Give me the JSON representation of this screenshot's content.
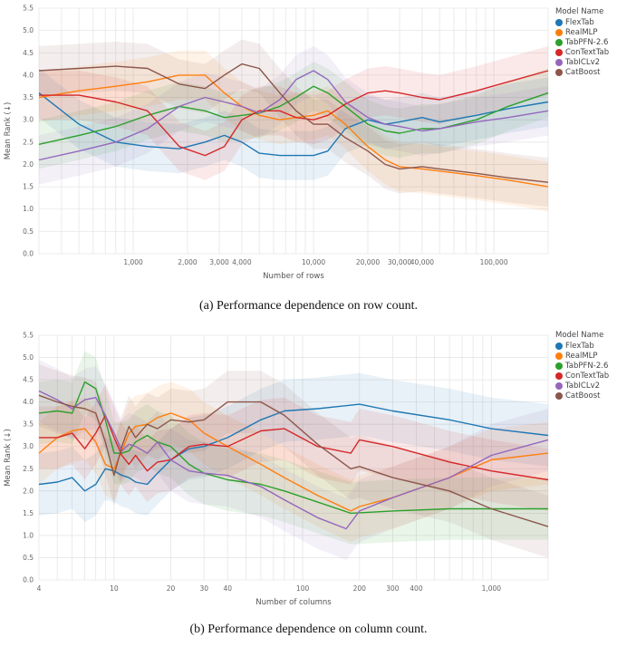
{
  "chart_data": [
    {
      "type": "line",
      "caption": "(a) Performance dependence on row count.",
      "xlabel": "Number of rows",
      "ylabel": "Mean Rank (↓)",
      "xscale": "log",
      "xlim": [
        300,
        200000
      ],
      "ylim": [
        0,
        5.5
      ],
      "yticks": [
        0.0,
        0.5,
        1.0,
        1.5,
        2.0,
        2.5,
        3.0,
        3.5,
        4.0,
        4.5,
        5.0,
        5.5
      ],
      "ytick_labels": [
        "0.0",
        "0.5",
        "1.0",
        "1.5",
        "2.0",
        "2.5",
        "3.0",
        "3.5",
        "4.0",
        "4.5",
        "5.0",
        "5.5"
      ],
      "xticks": [
        1000,
        2000,
        3000,
        4000,
        10000,
        20000,
        30000,
        40000,
        100000
      ],
      "xtick_labels": [
        "1,000",
        "2,000",
        "3,000",
        "4,000",
        "10,000",
        "20,000",
        "30,000",
        "40,000",
        "100,000"
      ],
      "grid": true,
      "legend": {
        "title": "Model Name",
        "placement": "right"
      },
      "series": [
        {
          "name": "FlexTab",
          "color": "#1f77b4",
          "band": 0.55,
          "x": [
            300,
            500,
            800,
            1200,
            1800,
            2500,
            3200,
            4000,
            5000,
            6500,
            8000,
            10000,
            12000,
            15000,
            20000,
            25000,
            30000,
            40000,
            50000,
            80000,
            120000,
            200000
          ],
          "y": [
            3.6,
            2.9,
            2.5,
            2.4,
            2.35,
            2.5,
            2.65,
            2.5,
            2.25,
            2.2,
            2.2,
            2.2,
            2.3,
            2.8,
            3.0,
            2.9,
            2.95,
            3.05,
            2.95,
            3.1,
            3.25,
            3.4
          ]
        },
        {
          "name": "RealMLP",
          "color": "#ff7f0e",
          "band": 0.55,
          "x": [
            300,
            500,
            800,
            1200,
            1800,
            2500,
            3200,
            4000,
            5000,
            6500,
            8000,
            10000,
            12000,
            15000,
            20000,
            25000,
            30000,
            40000,
            50000,
            80000,
            120000,
            200000
          ],
          "y": [
            3.5,
            3.65,
            3.75,
            3.85,
            4.0,
            4.0,
            3.6,
            3.3,
            3.1,
            3.0,
            3.05,
            3.1,
            3.2,
            2.9,
            2.4,
            2.1,
            1.95,
            1.9,
            1.85,
            1.75,
            1.65,
            1.5
          ]
        },
        {
          "name": "TabPFN-2.6",
          "color": "#2ca02c",
          "band": 0.55,
          "x": [
            300,
            500,
            800,
            1200,
            1800,
            2500,
            3200,
            4000,
            5000,
            6500,
            8000,
            10000,
            12000,
            15000,
            20000,
            25000,
            30000,
            40000,
            50000,
            80000,
            120000,
            200000
          ],
          "y": [
            2.45,
            2.65,
            2.85,
            3.1,
            3.3,
            3.2,
            3.05,
            3.1,
            3.15,
            3.3,
            3.5,
            3.75,
            3.6,
            3.3,
            2.9,
            2.75,
            2.7,
            2.8,
            2.8,
            3.0,
            3.3,
            3.6
          ]
        },
        {
          "name": "ConTextTab",
          "color": "#d62728",
          "band": 0.55,
          "x": [
            300,
            500,
            800,
            1200,
            1800,
            2500,
            3200,
            4000,
            5000,
            6500,
            8000,
            10000,
            12000,
            15000,
            20000,
            25000,
            30000,
            40000,
            50000,
            80000,
            120000,
            200000
          ],
          "y": [
            3.55,
            3.55,
            3.4,
            3.2,
            2.4,
            2.2,
            2.4,
            3.0,
            3.2,
            3.2,
            3.05,
            3.0,
            3.1,
            3.35,
            3.6,
            3.65,
            3.6,
            3.5,
            3.45,
            3.65,
            3.85,
            4.1
          ]
        },
        {
          "name": "TabICLv2",
          "color": "#9467bd",
          "band": 0.55,
          "x": [
            300,
            500,
            800,
            1200,
            1800,
            2500,
            3200,
            4000,
            5000,
            6500,
            8000,
            10000,
            12000,
            15000,
            20000,
            25000,
            30000,
            40000,
            50000,
            80000,
            120000,
            200000
          ],
          "y": [
            2.1,
            2.3,
            2.5,
            2.8,
            3.3,
            3.5,
            3.4,
            3.3,
            3.15,
            3.45,
            3.9,
            4.1,
            3.9,
            3.4,
            3.05,
            2.9,
            2.85,
            2.75,
            2.8,
            2.95,
            3.05,
            3.2
          ]
        },
        {
          "name": "CatBoost",
          "color": "#8c564b",
          "band": 0.55,
          "x": [
            300,
            500,
            800,
            1200,
            1800,
            2500,
            3200,
            4000,
            5000,
            6500,
            8000,
            10000,
            12000,
            15000,
            20000,
            25000,
            30000,
            40000,
            50000,
            80000,
            120000,
            200000
          ],
          "y": [
            4.1,
            4.15,
            4.2,
            4.15,
            3.8,
            3.7,
            4.0,
            4.25,
            4.15,
            3.6,
            3.2,
            2.9,
            2.9,
            2.6,
            2.3,
            2.0,
            1.9,
            1.95,
            1.9,
            1.8,
            1.7,
            1.6
          ]
        }
      ]
    },
    {
      "type": "line",
      "caption": "(b) Performance dependence on column count.",
      "xlabel": "Number of columns",
      "ylabel": "Mean Rank (↓)",
      "xscale": "log",
      "xlim": [
        4,
        2000
      ],
      "ylim": [
        0,
        5.5
      ],
      "yticks": [
        0.0,
        0.5,
        1.0,
        1.5,
        2.0,
        2.5,
        3.0,
        3.5,
        4.0,
        4.5,
        5.0,
        5.5
      ],
      "ytick_labels": [
        "0.0",
        "0.5",
        "1.0",
        "1.5",
        "2.0",
        "2.5",
        "3.0",
        "3.5",
        "4.0",
        "4.5",
        "5.0",
        "5.5"
      ],
      "xticks": [
        4,
        10,
        20,
        30,
        40,
        100,
        200,
        300,
        400,
        1000
      ],
      "xtick_labels": [
        "4",
        "10",
        "20",
        "30",
        "40",
        "100",
        "200",
        "300",
        "400",
        "1,000"
      ],
      "grid": true,
      "legend": {
        "title": "Model Name",
        "placement": "right"
      },
      "series": [
        {
          "name": "FlexTab",
          "color": "#1f77b4",
          "band": 0.7,
          "x": [
            4,
            5,
            6,
            7,
            8,
            9,
            10,
            11,
            12,
            13,
            15,
            17,
            20,
            25,
            30,
            40,
            60,
            80,
            120,
            200,
            300,
            600,
            1000,
            2000
          ],
          "y": [
            2.15,
            2.2,
            2.3,
            2.0,
            2.15,
            2.5,
            2.45,
            2.35,
            2.3,
            2.2,
            2.15,
            2.4,
            2.7,
            2.95,
            3.0,
            3.2,
            3.6,
            3.8,
            3.85,
            3.95,
            3.8,
            3.6,
            3.4,
            3.25
          ]
        },
        {
          "name": "RealMLP",
          "color": "#ff7f0e",
          "band": 0.7,
          "x": [
            4,
            5,
            6,
            7,
            8,
            9,
            10,
            11,
            12,
            13,
            15,
            17,
            20,
            25,
            30,
            40,
            60,
            80,
            120,
            180,
            200,
            300,
            600,
            1000,
            2000
          ],
          "y": [
            2.85,
            3.2,
            3.35,
            3.4,
            3.1,
            2.6,
            2.5,
            2.9,
            3.3,
            3.45,
            3.5,
            3.65,
            3.75,
            3.6,
            3.3,
            3.0,
            2.6,
            2.3,
            1.9,
            1.55,
            1.65,
            1.85,
            2.3,
            2.7,
            2.85
          ]
        },
        {
          "name": "TabPFN-2.6",
          "color": "#2ca02c",
          "band": 0.7,
          "x": [
            4,
            5,
            6,
            7,
            8,
            9,
            10,
            11,
            12,
            13,
            15,
            17,
            20,
            25,
            30,
            40,
            60,
            80,
            120,
            180,
            300,
            600,
            1000,
            2000
          ],
          "y": [
            3.75,
            3.8,
            3.75,
            4.45,
            4.3,
            3.6,
            2.85,
            2.85,
            2.9,
            3.1,
            3.25,
            3.1,
            3.0,
            2.6,
            2.4,
            2.25,
            2.15,
            2.0,
            1.75,
            1.5,
            1.55,
            1.6,
            1.6,
            1.6
          ]
        },
        {
          "name": "ConTextTab",
          "color": "#d62728",
          "band": 0.7,
          "x": [
            4,
            5,
            6,
            7,
            8,
            9,
            10,
            11,
            12,
            13,
            15,
            17,
            20,
            25,
            30,
            40,
            60,
            80,
            120,
            180,
            200,
            300,
            600,
            1000,
            2000
          ],
          "y": [
            3.2,
            3.2,
            3.3,
            2.95,
            3.3,
            3.7,
            3.2,
            2.8,
            2.6,
            2.8,
            2.45,
            2.65,
            2.7,
            3.0,
            3.05,
            3.0,
            3.35,
            3.4,
            3.0,
            2.85,
            3.15,
            3.0,
            2.65,
            2.45,
            2.25
          ]
        },
        {
          "name": "TabICLv2",
          "color": "#9467bd",
          "band": 0.7,
          "x": [
            4,
            5,
            6,
            7,
            8,
            9,
            10,
            11,
            12,
            13,
            15,
            17,
            20,
            25,
            30,
            40,
            60,
            80,
            120,
            170,
            200,
            300,
            600,
            1000,
            2000
          ],
          "y": [
            4.25,
            4.05,
            3.85,
            4.05,
            4.1,
            3.7,
            3.3,
            2.9,
            3.05,
            3.0,
            2.85,
            3.1,
            2.7,
            2.45,
            2.4,
            2.35,
            2.1,
            1.8,
            1.4,
            1.15,
            1.55,
            1.85,
            2.3,
            2.8,
            3.15
          ]
        },
        {
          "name": "CatBoost",
          "color": "#8c564b",
          "band": 0.7,
          "x": [
            4,
            5,
            6,
            7,
            8,
            9,
            10,
            11,
            12,
            13,
            15,
            17,
            20,
            25,
            30,
            40,
            50,
            60,
            80,
            120,
            180,
            200,
            300,
            600,
            1000,
            2000
          ],
          "y": [
            4.15,
            4.0,
            3.9,
            3.85,
            3.75,
            3.1,
            2.35,
            3.0,
            3.45,
            3.2,
            3.5,
            3.4,
            3.6,
            3.55,
            3.6,
            4.0,
            4.0,
            4.0,
            3.7,
            3.05,
            2.5,
            2.55,
            2.3,
            2.0,
            1.6,
            1.2
          ]
        }
      ]
    }
  ]
}
